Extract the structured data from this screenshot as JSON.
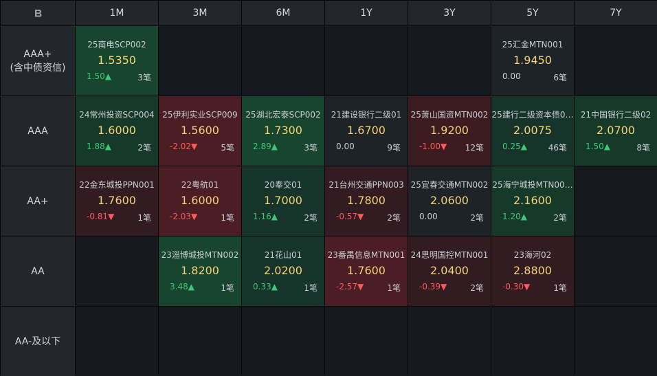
{
  "corner_icon": "refresh-icon",
  "columns": [
    "1M",
    "3M",
    "6M",
    "1Y",
    "3Y",
    "5Y",
    "7Y"
  ],
  "rows": [
    {
      "label_line1": "AAA+",
      "label_line2": "(含中债资信)"
    },
    {
      "label_line1": "AAA",
      "label_line2": ""
    },
    {
      "label_line1": "AA+",
      "label_line2": ""
    },
    {
      "label_line1": "AA",
      "label_line2": ""
    },
    {
      "label_line1": "AA-及以下",
      "label_line2": ""
    }
  ],
  "colors": {
    "up": "#3fc778",
    "down": "#ff5a5a",
    "rate": "#f3d27a"
  },
  "cells": [
    [
      {
        "name": "25南电SCP002",
        "rate": "1.5350",
        "change": "1.50▲",
        "count": "3笔",
        "dir": "up",
        "tone": "up-strong"
      },
      null,
      null,
      null,
      null,
      {
        "name": "25汇金MTN001",
        "rate": "1.9450",
        "change": "0.00",
        "count": "6笔",
        "dir": "flat",
        "tone": "neutral"
      },
      null
    ],
    [
      {
        "name": "24常州投资SCP004",
        "rate": "1.6000",
        "change": "1.88▲",
        "count": "2笔",
        "dir": "up",
        "tone": "up-mid"
      },
      {
        "name": "25伊利实业SCP009",
        "rate": "1.5600",
        "change": "-2.02▼",
        "count": "5笔",
        "dir": "down",
        "tone": "down-strong"
      },
      {
        "name": "25湖北宏泰SCP002",
        "rate": "1.7300",
        "change": "2.89▲",
        "count": "3笔",
        "dir": "up",
        "tone": "up-strong"
      },
      {
        "name": "21建设银行二级01",
        "rate": "1.6700",
        "change": "0.00",
        "count": "9笔",
        "dir": "flat",
        "tone": "neutral"
      },
      {
        "name": "25萧山国资MTN002",
        "rate": "1.9200",
        "change": "-1.00▼",
        "count": "12笔",
        "dir": "down",
        "tone": "down-mid"
      },
      {
        "name": "25建行二级资本债0…",
        "rate": "2.0075",
        "change": "0.25▲",
        "count": "46笔",
        "dir": "up",
        "tone": "up-weak"
      },
      {
        "name": "21中国银行二级02",
        "rate": "2.0700",
        "change": "1.50▲",
        "count": "8笔",
        "dir": "up",
        "tone": "up-mid"
      }
    ],
    [
      {
        "name": "22金东城投PPN001",
        "rate": "1.7600",
        "change": "-0.81▼",
        "count": "1笔",
        "dir": "down",
        "tone": "down-weak"
      },
      {
        "name": "22粤航01",
        "rate": "1.6000",
        "change": "-2.03▼",
        "count": "1笔",
        "dir": "down",
        "tone": "down-strong"
      },
      {
        "name": "20奉交01",
        "rate": "1.7000",
        "change": "1.16▲",
        "count": "2笔",
        "dir": "up",
        "tone": "up-weak"
      },
      {
        "name": "21台州交通PPN003",
        "rate": "1.7800",
        "change": "-0.57▼",
        "count": "2笔",
        "dir": "down",
        "tone": "down-weak"
      },
      {
        "name": "25宜春交通MTN002",
        "rate": "2.0600",
        "change": "0.00",
        "count": "2笔",
        "dir": "flat",
        "tone": "neutral"
      },
      {
        "name": "25海宁城投MTN00…",
        "rate": "2.1600",
        "change": "1.20▲",
        "count": "2笔",
        "dir": "up",
        "tone": "up-mid"
      },
      null
    ],
    [
      null,
      {
        "name": "23淄博城投MTN002",
        "rate": "1.8200",
        "change": "3.48▲",
        "count": "1笔",
        "dir": "up",
        "tone": "up-strong"
      },
      {
        "name": "21花山01",
        "rate": "2.0200",
        "change": "0.33▲",
        "count": "1笔",
        "dir": "up",
        "tone": "up-weak"
      },
      {
        "name": "23番禺信息MTN001",
        "rate": "1.7600",
        "change": "-2.57▼",
        "count": "1笔",
        "dir": "down",
        "tone": "down-strong"
      },
      {
        "name": "24思明国控MTN001",
        "rate": "2.0400",
        "change": "-0.39▼",
        "count": "2笔",
        "dir": "down",
        "tone": "down-weak"
      },
      {
        "name": "23海河02",
        "rate": "2.8800",
        "change": "-0.30▼",
        "count": "1笔",
        "dir": "down",
        "tone": "down-weak"
      },
      null
    ],
    [
      null,
      null,
      null,
      null,
      null,
      null,
      null
    ]
  ]
}
